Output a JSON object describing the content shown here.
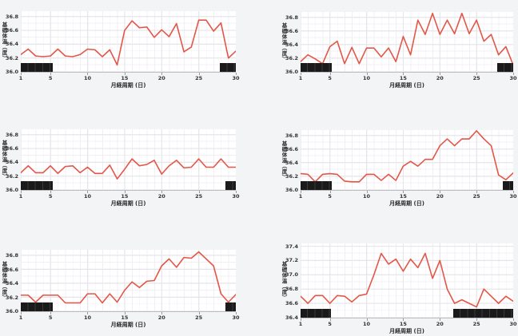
{
  "app": {
    "background_color": "#f3f4f6",
    "x_axis_title": "月経周期 (日)",
    "y_axis_title": "基礎体温（度）"
  },
  "style": {
    "line_color": "#e35648",
    "period_bar_color": "#1a1a1a",
    "period_bar_divider_color": "#3a3a3a",
    "plot_background": "#ffffff",
    "grid_minor_color": "#f0f0f4",
    "grid_major_color": "#e4e4ea",
    "axis_line_color": "#bbbbbf",
    "tick_text_color": "#333333"
  },
  "chart_data": [
    {
      "name": "top-left",
      "type": "line",
      "title": "",
      "xlabel": "月経周期 (日)",
      "ylabel": "基礎体温（度）",
      "x_days": "1-30",
      "xticks": [
        1,
        5,
        10,
        15,
        20,
        25,
        30
      ],
      "yticks": [
        "36.0",
        "36.2",
        "36.4",
        "36.6",
        "36.8"
      ],
      "ylim": [
        36.0,
        36.88
      ],
      "grid": true,
      "legend": false,
      "values": [
        36.25,
        36.33,
        36.23,
        36.22,
        36.23,
        36.33,
        36.23,
        36.22,
        36.25,
        36.33,
        36.32,
        36.22,
        36.32,
        36.1,
        36.6,
        36.74,
        36.64,
        36.65,
        36.5,
        36.61,
        36.51,
        36.7,
        36.29,
        36.36,
        36.75,
        36.75,
        36.59,
        36.71,
        36.2,
        36.3
      ],
      "period_bars_day_ranges": [
        [
          1,
          5.3
        ],
        [
          27.8,
          30
        ]
      ]
    },
    {
      "name": "top-right",
      "type": "line",
      "title": "",
      "xlabel": "月経周期 (日)",
      "ylabel": "基礎体温（度）",
      "x_days": "1-30",
      "xticks": [
        1,
        5,
        10,
        15,
        20,
        25,
        30
      ],
      "yticks": [
        "36.0",
        "36.2",
        "36.4",
        "36.6",
        "36.8"
      ],
      "ylim": [
        36.0,
        36.88
      ],
      "grid": true,
      "legend": false,
      "values": [
        36.15,
        36.25,
        36.19,
        36.12,
        36.37,
        36.45,
        36.12,
        36.36,
        36.12,
        36.35,
        36.35,
        36.22,
        36.35,
        36.15,
        36.52,
        36.25,
        36.76,
        36.55,
        36.86,
        36.55,
        36.76,
        36.56,
        36.86,
        36.56,
        36.76,
        36.45,
        36.55,
        36.25,
        36.37,
        36.1
      ],
      "period_bars_day_ranges": [
        [
          1,
          5.3
        ],
        [
          27.8,
          30
        ]
      ]
    },
    {
      "name": "middle-left",
      "type": "line",
      "title": "",
      "xlabel": "月経周期 (日)",
      "ylabel": "基礎体温（度）",
      "x_days": "1-30",
      "xticks": [
        1,
        5,
        10,
        15,
        20,
        25,
        30
      ],
      "yticks": [
        "36.0",
        "36.2",
        "36.4",
        "36.6",
        "36.8"
      ],
      "ylim": [
        36.0,
        36.88
      ],
      "grid": true,
      "legend": false,
      "values": [
        36.25,
        36.35,
        36.25,
        36.25,
        36.35,
        36.24,
        36.34,
        36.35,
        36.25,
        36.33,
        36.24,
        36.24,
        36.36,
        36.16,
        36.3,
        36.45,
        36.35,
        36.37,
        36.43,
        36.23,
        36.35,
        36.43,
        36.32,
        36.33,
        36.45,
        36.33,
        36.33,
        36.45,
        36.33,
        36.33
      ],
      "period_bars_day_ranges": [
        [
          1,
          5.3
        ],
        [
          28.6,
          30
        ]
      ]
    },
    {
      "name": "middle-right",
      "type": "line",
      "title": "",
      "xlabel": "月経周期 (日)",
      "ylabel": "基礎体温（度）",
      "x_days": "1-30",
      "xticks": [
        1,
        5,
        10,
        15,
        20,
        25,
        30
      ],
      "yticks": [
        "36.0",
        "36.2",
        "36.4",
        "36.6",
        "36.8"
      ],
      "ylim": [
        36.0,
        36.88
      ],
      "grid": true,
      "legend": false,
      "values": [
        36.24,
        36.23,
        36.12,
        36.23,
        36.24,
        36.23,
        36.13,
        36.12,
        36.12,
        36.23,
        36.23,
        36.14,
        36.23,
        36.14,
        36.35,
        36.42,
        36.35,
        36.45,
        36.45,
        36.65,
        36.75,
        36.65,
        36.75,
        36.75,
        36.87,
        36.75,
        36.65,
        36.22,
        36.15,
        36.25
      ],
      "period_bars_day_ranges": [
        [
          1,
          5.3
        ],
        [
          28.6,
          30
        ]
      ]
    },
    {
      "name": "bottom-left",
      "type": "line",
      "title": "",
      "xlabel": "月経周期 (日)",
      "ylabel": "基礎体温（度）",
      "x_days": "1-30",
      "xticks": [
        1,
        5,
        10,
        15,
        20,
        25,
        30
      ],
      "yticks": [
        "36.0",
        "36.2",
        "36.4",
        "36.6",
        "36.8"
      ],
      "ylim": [
        36.0,
        36.88
      ],
      "grid": true,
      "legend": false,
      "values": [
        36.23,
        36.23,
        36.13,
        36.23,
        36.23,
        36.23,
        36.12,
        36.12,
        36.12,
        36.25,
        36.25,
        36.12,
        36.25,
        36.13,
        36.3,
        36.42,
        36.34,
        36.43,
        36.44,
        36.65,
        36.75,
        36.63,
        36.77,
        36.76,
        36.85,
        36.75,
        36.65,
        36.25,
        36.13,
        36.24
      ],
      "period_bars_day_ranges": [
        [
          1,
          5.3
        ],
        [
          28.6,
          30
        ]
      ]
    },
    {
      "name": "bottom-right",
      "type": "line",
      "title": "",
      "xlabel": "月経周期 (日)",
      "ylabel": "基礎体温（度）",
      "x_days": "1-30",
      "xticks": [
        1,
        5,
        10,
        15,
        20,
        25,
        30
      ],
      "yticks": [
        "36.4",
        "36.6",
        "36.8",
        "37.0",
        "37.2",
        "37.4"
      ],
      "ylim": [
        36.4,
        37.44
      ],
      "grid": true,
      "legend": false,
      "values": [
        36.7,
        36.6,
        36.71,
        36.71,
        36.6,
        36.71,
        36.7,
        36.62,
        36.71,
        36.73,
        37.0,
        37.3,
        37.15,
        37.22,
        37.05,
        37.22,
        37.1,
        37.3,
        36.95,
        37.2,
        36.8,
        36.6,
        36.65,
        36.6,
        36.55,
        36.8,
        36.7,
        36.6,
        36.7,
        36.63
      ],
      "period_bars_day_ranges": [
        [
          1,
          5.1
        ],
        [
          21.8,
          30
        ]
      ]
    }
  ]
}
